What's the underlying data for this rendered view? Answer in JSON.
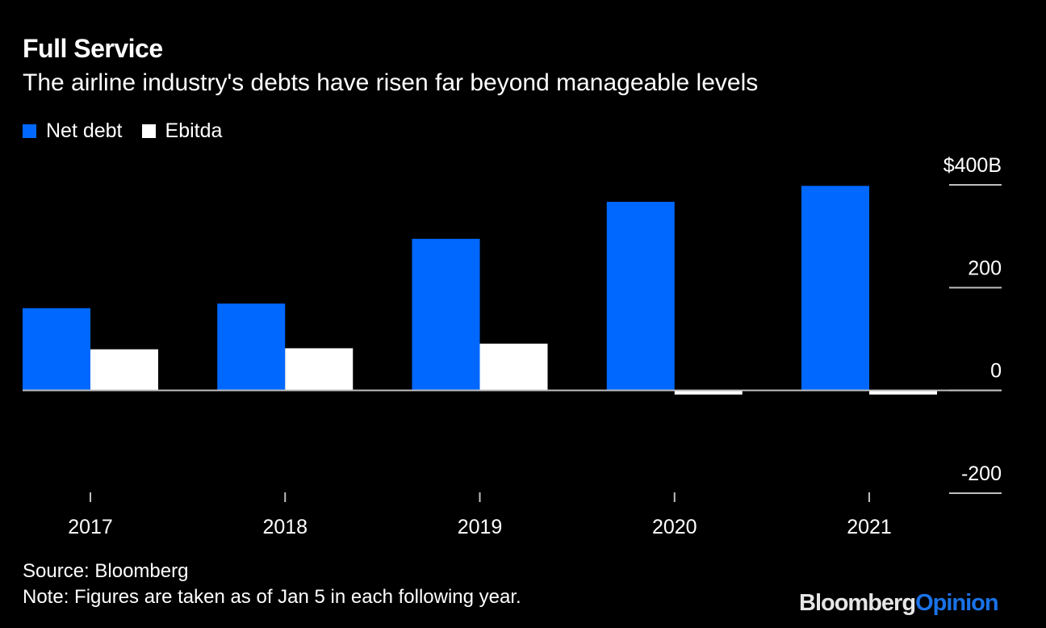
{
  "header": {
    "title": "Full Service",
    "subtitle": "The airline industry's debts have risen far beyond manageable levels"
  },
  "legend": [
    {
      "label": "Net debt",
      "color": "#0068ff"
    },
    {
      "label": "Ebitda",
      "color": "#ffffff"
    }
  ],
  "footer": {
    "source": "Source: Bloomberg",
    "note": "Note: Figures are taken as of Jan 5 in each following year.",
    "logo_part1": "Bloomberg",
    "logo_part2": "Opinion"
  },
  "chart_data": {
    "type": "bar",
    "title": "Full Service",
    "subtitle": "The airline industry's debts have risen far beyond manageable levels",
    "xlabel": "",
    "ylabel": "",
    "categories": [
      "2017",
      "2018",
      "2019",
      "2020",
      "2021"
    ],
    "series": [
      {
        "name": "Net debt",
        "color": "#0068ff",
        "values": [
          160,
          169,
          295,
          367,
          398
        ]
      },
      {
        "name": "Ebitda",
        "color": "#ffffff",
        "values": [
          80,
          82,
          91,
          -8,
          -8
        ]
      }
    ],
    "ylim": [
      -200,
      400
    ],
    "yticks": [
      400,
      200,
      0,
      -200
    ],
    "ytick_labels": [
      "$400B",
      "200",
      "0",
      "-200"
    ],
    "y_axis_position": "right",
    "grid": false,
    "legend_position": "top-left",
    "units": "billions USD"
  }
}
